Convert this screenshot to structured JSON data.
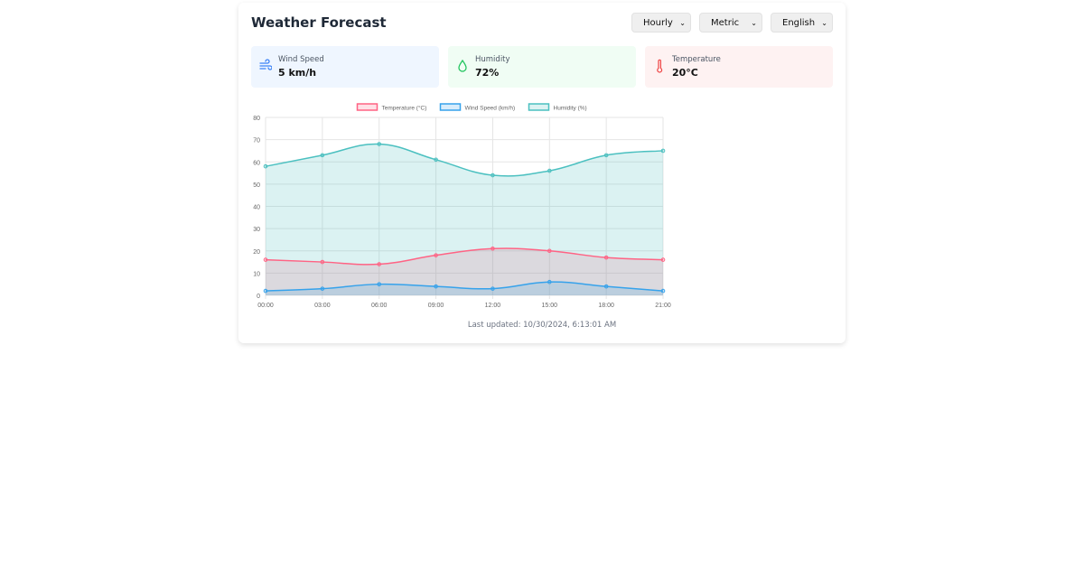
{
  "header": {
    "title": "Weather Forecast",
    "selects": [
      {
        "value": "Hourly"
      },
      {
        "value": "Metric"
      },
      {
        "value": "English"
      }
    ]
  },
  "stats": [
    {
      "label": "Wind Speed",
      "value": "5 km/h",
      "icon": "wind-icon",
      "bg": "#eff6ff",
      "color": "#3b82f6"
    },
    {
      "label": "Humidity",
      "value": "72%",
      "icon": "droplet-icon",
      "bg": "#f0fdf4",
      "color": "#22c55e"
    },
    {
      "label": "Temperature",
      "value": "20°C",
      "icon": "thermometer-icon",
      "bg": "#fef2f2",
      "color": "#ef4444"
    }
  ],
  "chart_data": {
    "type": "line",
    "categories": [
      "00:00",
      "03:00",
      "06:00",
      "09:00",
      "12:00",
      "15:00",
      "18:00",
      "21:00"
    ],
    "ylim": [
      0,
      80
    ],
    "yticks": [
      0,
      10,
      20,
      30,
      40,
      50,
      60,
      70,
      80
    ],
    "grid": true,
    "legend": "top",
    "fill": true,
    "series": [
      {
        "name": "Temperature (°C)",
        "values": [
          16,
          15,
          14,
          18,
          21,
          20,
          17,
          16
        ],
        "color": "#ff6384",
        "fill": "rgba(255,99,132,0.2)"
      },
      {
        "name": "Wind Speed (km/h)",
        "values": [
          2,
          3,
          5,
          4,
          3,
          6,
          4,
          2
        ],
        "color": "#36a2eb",
        "fill": "rgba(54,162,235,0.2)"
      },
      {
        "name": "Humidity (%)",
        "values": [
          58,
          63,
          68,
          61,
          54,
          56,
          63,
          65
        ],
        "color": "#4bc0c0",
        "fill": "rgba(75,192,192,0.2)"
      }
    ]
  },
  "footer": {
    "updated": "Last updated: 10/30/2024, 6:13:01 AM"
  }
}
